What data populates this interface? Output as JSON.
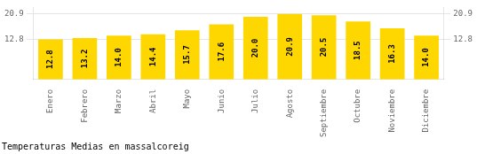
{
  "chart_data": {
    "type": "bar",
    "title": "Temperaturas Medias en massalcoreig",
    "categories": [
      "Enero",
      "Febrero",
      "Marzo",
      "Abril",
      "Mayo",
      "Junio",
      "Julio",
      "Agosto",
      "Septiembre",
      "Octubre",
      "Noviembre",
      "Diciembre"
    ],
    "values": [
      12.8,
      13.2,
      14.0,
      14.4,
      15.7,
      17.6,
      20.0,
      20.9,
      20.5,
      18.5,
      16.3,
      14.0
    ],
    "value_labels": [
      "12.8",
      "13.2",
      "14.0",
      "14.4",
      "15.7",
      "17.6",
      "20.0",
      "20.9",
      "20.5",
      "18.5",
      "16.3",
      "14.0"
    ],
    "color": "#FFD700",
    "ylim": [
      0,
      23.0
    ],
    "yticks": [
      12.8,
      20.9
    ],
    "y2lim": [
      0,
      23.0
    ],
    "y2ticks": [
      12.8,
      20.9
    ],
    "grid": true,
    "data_labels": true
  }
}
